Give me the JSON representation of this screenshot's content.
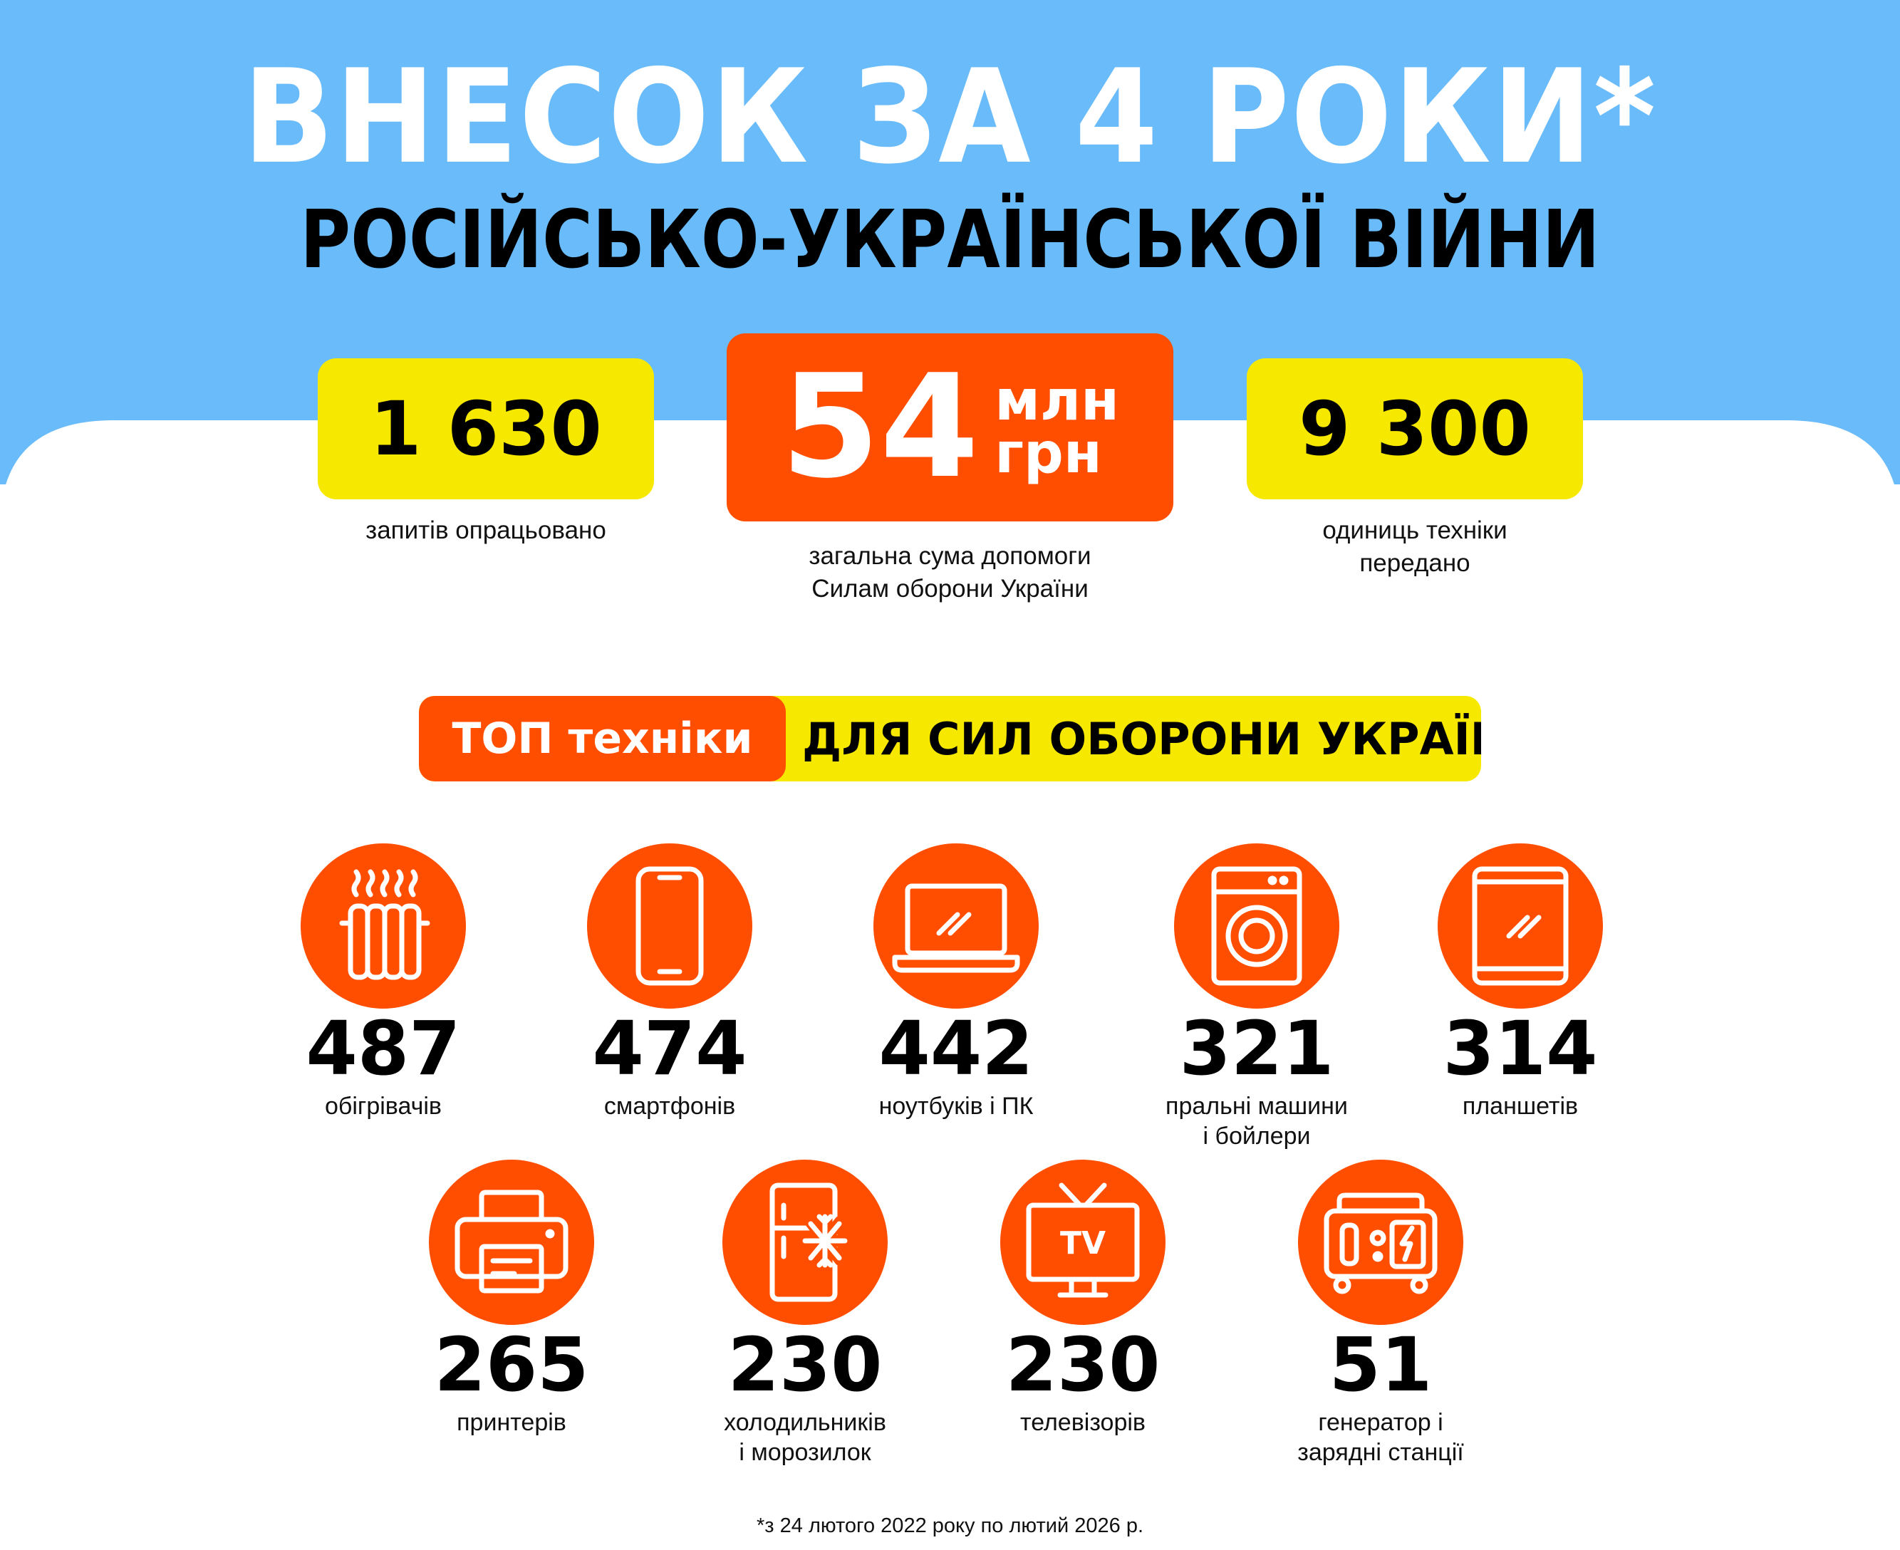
{
  "colors": {
    "sky_blue": "#69BBF9",
    "orange": "#FF4E00",
    "yellow": "#F7E800",
    "white": "#FFFFFF",
    "black": "#000000"
  },
  "header": {
    "title": "ВНЕСОК ЗА 4 РОКИ*",
    "subtitle": "РОСІЙСЬКО-УКРАЇНСЬКОЇ ВІЙНИ"
  },
  "stats": {
    "requests": {
      "value": "1 630",
      "label": "запитів опрацьовано"
    },
    "total": {
      "value": "54",
      "unit_line1": "млн",
      "unit_line2": "грн",
      "label": "загальна сума допомоги\nСилам оборони України"
    },
    "units": {
      "value": "9 300",
      "label": "одиниць техніки\nпередано"
    }
  },
  "top_banner": {
    "left": "ТОП техніки",
    "right": "ДЛЯ СИЛ ОБОРОНИ УКРАЇНИ"
  },
  "items": [
    {
      "icon": "radiator-icon",
      "value": "487",
      "label": "обігрівачів"
    },
    {
      "icon": "smartphone-icon",
      "value": "474",
      "label": "смартфонів"
    },
    {
      "icon": "laptop-icon",
      "value": "442",
      "label": "ноутбуків і ПК"
    },
    {
      "icon": "washing-machine-icon",
      "value": "321",
      "label": "пральні машини\nі бойлери"
    },
    {
      "icon": "tablet-icon",
      "value": "314",
      "label": "планшетів"
    },
    {
      "icon": "printer-icon",
      "value": "265",
      "label": "принтерів"
    },
    {
      "icon": "fridge-icon",
      "value": "230",
      "label": "холодильників\nі морозилок"
    },
    {
      "icon": "tv-icon",
      "value": "230",
      "label": "телевізорів",
      "icon_text": "TV"
    },
    {
      "icon": "generator-icon",
      "value": "51",
      "label": "генератор і\nзарядні станції"
    }
  ],
  "footnote": "*з 24 лютого 2022 року по лютий 2026 р."
}
